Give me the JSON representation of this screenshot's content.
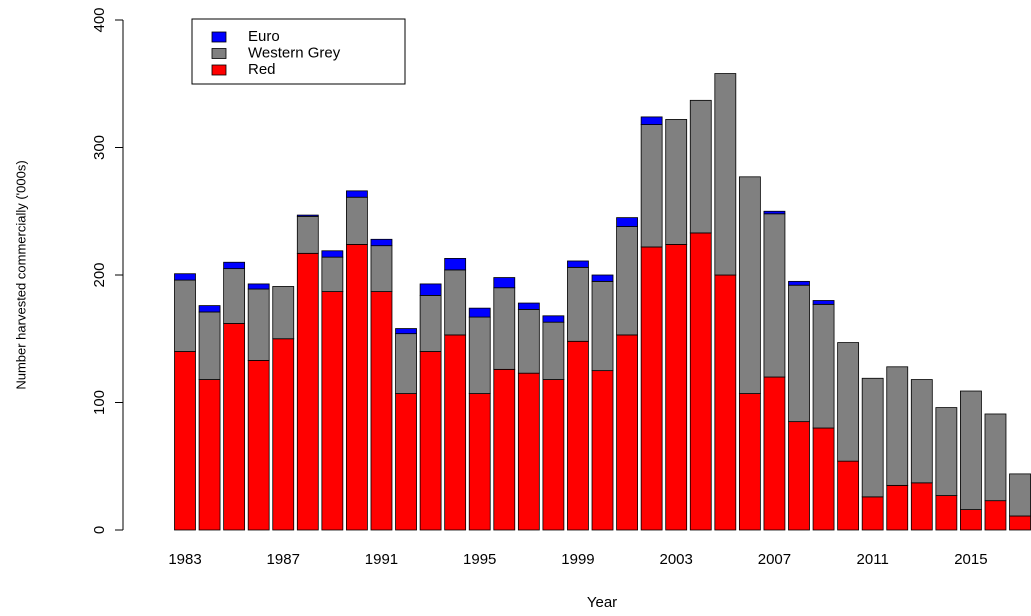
{
  "chart_data": {
    "type": "stacked_bar",
    "x_label": "Year",
    "y_label": "Number harvested commercially ('000s)",
    "categories": [
      "1983",
      null,
      null,
      null,
      "1987",
      null,
      null,
      null,
      "1991",
      null,
      null,
      null,
      "1995",
      null,
      null,
      null,
      "1999",
      null,
      null,
      null,
      "2003",
      null,
      null,
      null,
      "2007",
      null,
      null,
      null,
      "2011",
      null,
      null,
      null,
      "2015",
      null,
      null
    ],
    "series": [
      {
        "name": "Euro",
        "color": "#0000ff",
        "values": [
          5,
          5,
          5,
          4,
          0,
          1,
          5,
          5,
          5,
          4,
          9,
          9,
          7,
          8,
          5,
          5,
          5,
          5,
          7,
          6,
          0,
          0,
          0,
          0,
          2,
          3,
          3,
          0,
          0,
          0,
          0,
          0,
          0,
          0,
          0
        ]
      },
      {
        "name": "Western Grey",
        "color": "#808080",
        "values": [
          56,
          53,
          43,
          56,
          41,
          29,
          27,
          37,
          36,
          47,
          44,
          51,
          60,
          64,
          50,
          45,
          58,
          70,
          85,
          96,
          98,
          104,
          158,
          170,
          128,
          107,
          97,
          93,
          93,
          93,
          81,
          69,
          93,
          68,
          33
        ]
      },
      {
        "name": "Red",
        "color": "#ff0000",
        "values": [
          140,
          118,
          162,
          133,
          150,
          217,
          187,
          224,
          187,
          107,
          140,
          153,
          107,
          126,
          123,
          118,
          148,
          125,
          153,
          222,
          224,
          233,
          200,
          107,
          120,
          85,
          80,
          54,
          26,
          35,
          37,
          27,
          16,
          23,
          11
        ]
      }
    ],
    "ylim": [
      0,
      400
    ],
    "yticks": [
      0,
      100,
      200,
      300,
      400
    ],
    "legend": "top-left"
  }
}
